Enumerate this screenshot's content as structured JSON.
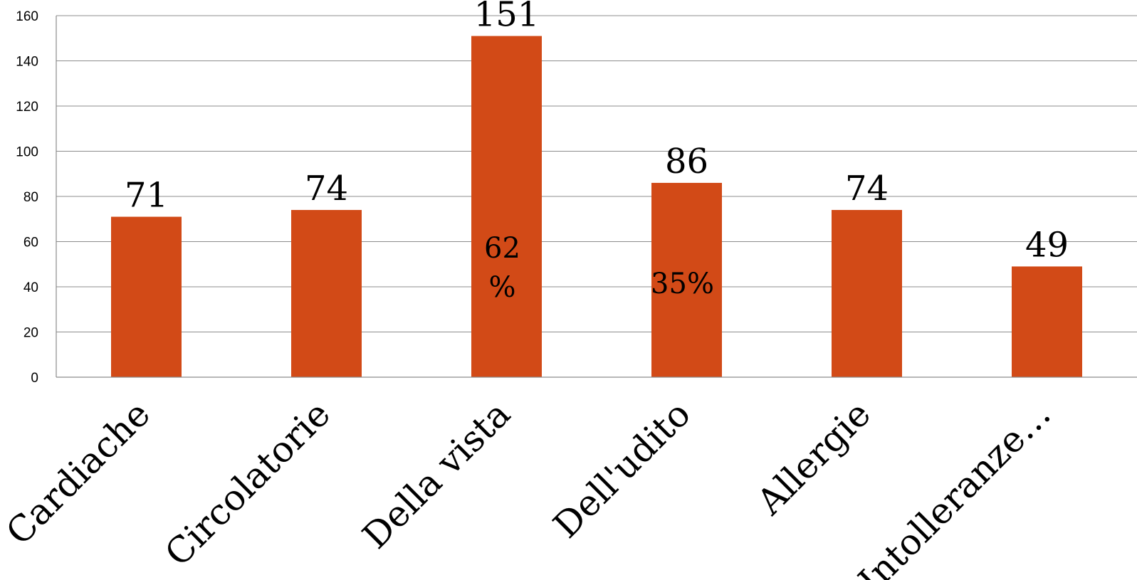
{
  "chart_data": {
    "type": "bar",
    "categories": [
      "Cardiache",
      "Circolatorie",
      "Della vista",
      "Dell'udito",
      "Allergie",
      "Intolleranze…"
    ],
    "values": [
      71,
      74,
      151,
      86,
      74,
      49
    ],
    "data_labels": [
      "71",
      "74",
      "151",
      "86",
      "74",
      "49"
    ],
    "inner_annotations": [
      {
        "category_index": 2,
        "lines": [
          "62",
          "%"
        ]
      },
      {
        "category_index": 3,
        "lines": [
          "35%"
        ]
      }
    ],
    "y_ticks": [
      0,
      20,
      40,
      60,
      80,
      100,
      120,
      140,
      160
    ],
    "ylim": [
      0,
      160
    ],
    "title": "",
    "xlabel": "",
    "ylabel": "",
    "grid": true,
    "legend": "none",
    "bar_color": "#d24a17"
  }
}
